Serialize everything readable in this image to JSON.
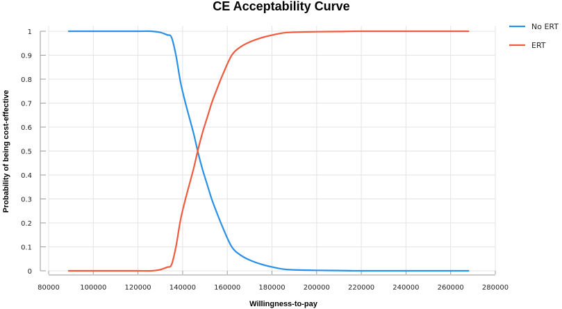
{
  "chart_data": {
    "type": "line",
    "title": "CE Acceptability Curve",
    "xlabel": "Willingness-to-pay",
    "ylabel": "Probability of being cost-effective",
    "xlim": [
      80000,
      280000
    ],
    "ylim": [
      0,
      1
    ],
    "x_ticks": [
      80000,
      100000,
      120000,
      140000,
      160000,
      180000,
      200000,
      220000,
      240000,
      260000,
      280000
    ],
    "x_tick_labels": [
      "80000",
      "100000",
      "120000",
      "140000",
      "160000",
      "180000",
      "200000",
      "220000",
      "240000",
      "260000",
      "280000"
    ],
    "y_ticks": [
      0,
      0.1,
      0.2,
      0.3,
      0.4,
      0.5,
      0.6,
      0.7,
      0.8,
      0.9,
      1
    ],
    "y_tick_labels": [
      "0",
      "0.1",
      "0.2",
      "0.3",
      "0.4",
      "0.5",
      "0.6",
      "0.7",
      "0.8",
      "0.9",
      "1"
    ],
    "grid": true,
    "legend_position": "top-right",
    "series": [
      {
        "name": "No ERT",
        "color": "#2a8fe6",
        "x": [
          89000,
          100000,
          110000,
          120000,
          126000,
          130000,
          133000,
          135000,
          137000,
          139000,
          141000,
          143000,
          145000,
          147000,
          149000,
          151000,
          153000,
          155000,
          158000,
          162000,
          166000,
          170000,
          175000,
          180000,
          185000,
          190000,
          200000,
          210000,
          220000,
          240000,
          268000
        ],
        "y": [
          1,
          1,
          1,
          1,
          1,
          0.995,
          0.985,
          0.975,
          0.9,
          0.79,
          0.71,
          0.64,
          0.57,
          0.49,
          0.42,
          0.36,
          0.3,
          0.25,
          0.18,
          0.1,
          0.065,
          0.045,
          0.028,
          0.016,
          0.007,
          0.004,
          0.002,
          0.001,
          0,
          0,
          0
        ]
      },
      {
        "name": "ERT",
        "color": "#f05a3d",
        "x": [
          89000,
          100000,
          110000,
          120000,
          126000,
          130000,
          133000,
          135000,
          137000,
          139000,
          141000,
          143000,
          145000,
          147000,
          149000,
          151000,
          153000,
          155000,
          158000,
          162000,
          166000,
          170000,
          175000,
          180000,
          185000,
          190000,
          200000,
          210000,
          220000,
          240000,
          268000
        ],
        "y": [
          0,
          0,
          0,
          0,
          0,
          0.005,
          0.015,
          0.025,
          0.1,
          0.21,
          0.29,
          0.36,
          0.43,
          0.51,
          0.58,
          0.64,
          0.7,
          0.75,
          0.82,
          0.9,
          0.935,
          0.955,
          0.972,
          0.984,
          0.993,
          0.996,
          0.998,
          0.999,
          1,
          1,
          1
        ]
      }
    ]
  }
}
